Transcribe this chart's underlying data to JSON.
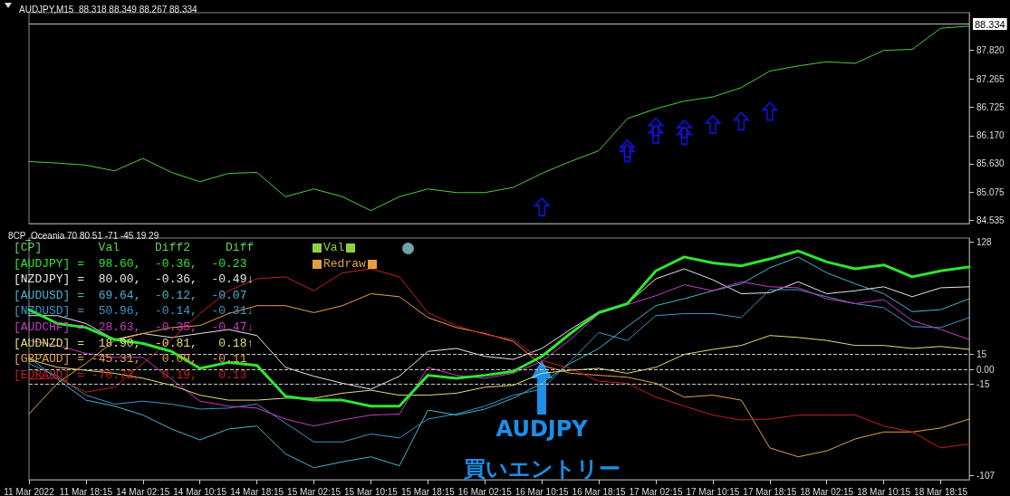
{
  "chart_data": [
    {
      "type": "line",
      "title": "AUDJPY,M15  88.318 88.349 88.267 88.334",
      "categories": [
        null,
        null,
        null,
        null,
        null,
        null,
        null,
        null,
        null,
        null,
        null,
        null,
        null,
        null,
        null,
        null,
        null,
        null,
        null,
        null,
        null,
        null,
        null,
        null,
        null,
        null,
        null,
        null,
        null,
        null,
        null,
        null,
        null,
        null
      ],
      "ylim": [
        84.47,
        88.55
      ],
      "yticks": [
        84.535,
        85.075,
        {
          "value": 85.63,
          "label": "85.630"
        },
        {
          "value": 86.17,
          "label": "86.170"
        },
        86.725,
        87.265,
        {
          "value": 87.82,
          "label": "87.820"
        }
      ],
      "tick_labels": "y",
      "ref_lines": [
        {
          "axis": "y",
          "value": 88.334,
          "label": "88.334",
          "color": "#c0c0c0"
        }
      ],
      "series": [
        {
          "color": "#4ccf3a",
          "values": [
            85.67,
            85.64,
            85.6,
            85.49,
            85.73,
            85.46,
            85.28,
            85.44,
            85.46,
            84.99,
            85.14,
            84.99,
            84.72,
            84.99,
            85.14,
            85.07,
            85.07,
            85.17,
            85.44,
            85.67,
            85.88,
            86.5,
            86.69,
            86.84,
            86.92,
            87.1,
            87.42,
            87.52,
            87.6,
            87.57,
            87.82,
            87.84,
            88.25,
            88.29
          ]
        },
        {
          "type": "scatter",
          "color": "#1414e6",
          "values": [
            null,
            null,
            null,
            null,
            null,
            null,
            null,
            null,
            null,
            null,
            null,
            null,
            null,
            null,
            null,
            null,
            null,
            null,
            84.79,
            null,
            null,
            85.84,
            86.34,
            86.17,
            86.39,
            86.45,
            86.64,
            null,
            null,
            null,
            null,
            null,
            null,
            null
          ]
        },
        {
          "type": "scatter",
          "color": "#1414e6",
          "values": [
            null,
            null,
            null,
            null,
            null,
            null,
            null,
            null,
            null,
            null,
            null,
            null,
            null,
            null,
            null,
            null,
            null,
            null,
            null,
            null,
            null,
            85.92,
            86.2,
            86.3,
            null,
            null,
            null,
            null,
            null,
            null,
            null,
            null,
            null,
            null
          ]
        }
      ]
    },
    {
      "type": "line",
      "title": "8CP_Oceania 70 80 51 -71 -45 19 29",
      "categories": [
        "11 Mar 2022",
        null,
        "11 Mar 18:15",
        null,
        "14 Mar 02:15",
        null,
        "14 Mar 10:15",
        null,
        "14 Mar 18:15",
        null,
        "15 Mar 02:15",
        null,
        "15 Mar 10:15",
        null,
        "15 Mar 18:15",
        null,
        "16 Mar 02:15",
        null,
        "16 Mar 10:15",
        null,
        "16 Mar 18:15",
        null,
        "17 Mar 02:15",
        null,
        "17 Mar 10:15",
        null,
        "17 Mar 18:15",
        null,
        "18 Mar 02:15",
        null,
        "18 Mar 10:15",
        null,
        "18 Mar 18:15",
        null
      ],
      "ylim": [
        -111,
        132
      ],
      "yticks": [
        -107,
        -15,
        {
          "value": 0,
          "label": "0.00"
        },
        15,
        128
      ],
      "ref_lines": [
        {
          "axis": "y",
          "value": 15,
          "color": "#c8c8c8",
          "line_style": "dashed"
        },
        {
          "axis": "y",
          "value": 0,
          "color": "#c8c8c8",
          "line_style": "dashed"
        },
        {
          "axis": "y",
          "value": -15,
          "color": "#c8c8c8",
          "line_style": "dashed"
        }
      ],
      "annotations": [
        "[CP]        Val     Diff2     Diff",
        "=  98.60,  -0.36,  -0.23",
        "=  80.00,  -0.36,  -0.49↓",
        "=  69.64,  -0.12,  -0.07",
        "=  50.96,  -0.14,  -0.31↓",
        "=  28.63,  -0.35,  -0.47↓",
        "=  18.90,  -0.81,   0.18↑",
        "= -45.31,   0.09,  -0.11",
        "= -70.72,   0.19,   0.13",
        "Val",
        "Redraw",
        {
          "text": "AUDJPY",
          "x": "16 Mar 10:15",
          "y": 9
        },
        "買いエントリー"
      ],
      "series": [
        {
          "name": "[AUDJPY]",
          "color": "#2ee62e",
          "values": [
            60,
            46,
            42,
            30,
            26,
            18,
            1,
            7,
            4,
            -27,
            -31,
            -31,
            -37,
            -37,
            -6,
            -9,
            -6,
            -2,
            13,
            36,
            57,
            66,
            99,
            113,
            107,
            104,
            111,
            119,
            108,
            101,
            105,
            93,
            99,
            103
          ]
        },
        {
          "name": "[NZDJPY]",
          "color": "#e6e6e6",
          "values": [
            54,
            54,
            46,
            30,
            36,
            32,
            36,
            40,
            34,
            2,
            -7,
            -14,
            -20,
            -7,
            18,
            21,
            13,
            10,
            21,
            40,
            58,
            66,
            91,
            101,
            90,
            76,
            77,
            88,
            76,
            79,
            83,
            73,
            82,
            83
          ]
        },
        {
          "name": "[AUDUSD]",
          "color": "#46b4d2",
          "values": [
            12,
            -10,
            -31,
            -37,
            -46,
            -60,
            -71,
            -60,
            -57,
            -85,
            -99,
            -93,
            -88,
            -97,
            -41,
            -46,
            -40,
            -29,
            -14,
            6,
            21,
            43,
            64,
            71,
            79,
            86,
            102,
            113,
            97,
            86,
            76,
            58,
            60,
            71
          ]
        },
        {
          "name": "[NZDUSD]",
          "color": "#3c96c8",
          "values": [
            6,
            -7,
            -26,
            -35,
            -32,
            -35,
            -40,
            -39,
            -35,
            -54,
            -73,
            -73,
            -65,
            -69,
            -50,
            -45,
            -37,
            -26,
            -20,
            8,
            37,
            29,
            54,
            56,
            56,
            52,
            80,
            80,
            73,
            66,
            62,
            43,
            42,
            52
          ]
        },
        {
          "name": "[AUDCHF]",
          "color": "#c83cc8",
          "values": [
            29,
            24,
            16,
            12,
            12,
            -10,
            -32,
            -37,
            -39,
            -50,
            -57,
            -51,
            -46,
            -45,
            2,
            -6,
            -9,
            -4,
            8,
            30,
            56,
            65,
            74,
            85,
            79,
            88,
            83,
            82,
            71,
            66,
            70,
            49,
            40,
            30
          ]
        },
        {
          "name": "[AUDNZD]",
          "color": "#e6dc78",
          "values": [
            10,
            2,
            -1,
            -4,
            -9,
            -16,
            -26,
            -31,
            -31,
            -29,
            -29,
            -24,
            -21,
            -26,
            -26,
            -24,
            -18,
            -16,
            -4,
            -1,
            1,
            -4,
            2,
            15,
            20,
            24,
            34,
            32,
            29,
            24,
            24,
            21,
            23,
            20
          ]
        },
        {
          "name": "[GBPAUD]",
          "color": "#e6a046",
          "values": [
            -45,
            -14,
            6,
            29,
            36,
            42,
            44,
            56,
            64,
            64,
            57,
            64,
            76,
            73,
            52,
            42,
            36,
            28,
            4,
            -4,
            -6,
            -8,
            -14,
            -28,
            -26,
            -31,
            -79,
            -88,
            -82,
            -70,
            -63,
            -63,
            -59,
            -50
          ]
        },
        {
          "name": "[EURAUD]",
          "color": "#c81e1e",
          "values": [
            -10,
            -9,
            -23,
            -18,
            6,
            30,
            56,
            79,
            91,
            93,
            79,
            97,
            101,
            93,
            57,
            44,
            35,
            30,
            9,
            1,
            -12,
            -14,
            -28,
            -37,
            -46,
            -51,
            -50,
            -46,
            -46,
            -46,
            -57,
            -63,
            -79,
            -75
          ]
        }
      ]
    }
  ]
}
